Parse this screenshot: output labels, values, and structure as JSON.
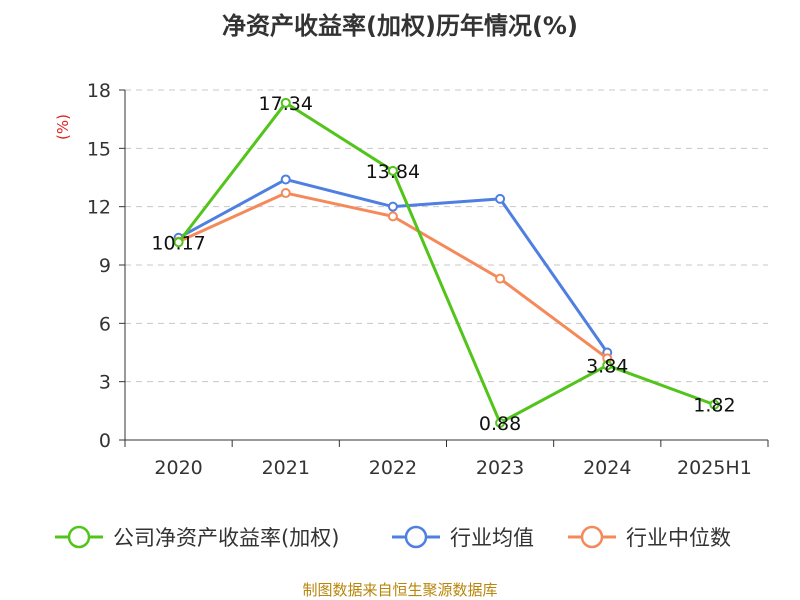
{
  "chart_data": {
    "type": "line",
    "title": "净资产收益率(加权)历年情况(%)",
    "ylabel": "(%)",
    "xlabel": "",
    "categories": [
      "2020",
      "2021",
      "2022",
      "2023",
      "2024",
      "2025H1"
    ],
    "ylim": [
      0,
      18
    ],
    "yticks": [
      0,
      3,
      6,
      9,
      12,
      15,
      18
    ],
    "grid": true,
    "legend_placement": "bottom",
    "series": [
      {
        "name": "公司净资产收益率(加权)",
        "color": "#52c41a",
        "values": [
          10.17,
          17.34,
          13.84,
          0.88,
          3.84,
          1.82
        ],
        "labels": [
          "10.17",
          "17.34",
          "13.84",
          "0.88",
          "3.84",
          "1.82"
        ]
      },
      {
        "name": "行业均值",
        "color": "#4f7fe0",
        "values": [
          10.4,
          13.4,
          12.0,
          12.4,
          4.5,
          null
        ]
      },
      {
        "name": "行业中位数",
        "color": "#f5895a",
        "values": [
          10.2,
          12.7,
          11.5,
          8.3,
          4.2,
          null
        ]
      }
    ],
    "source": "制图数据来自恒生聚源数据库"
  }
}
